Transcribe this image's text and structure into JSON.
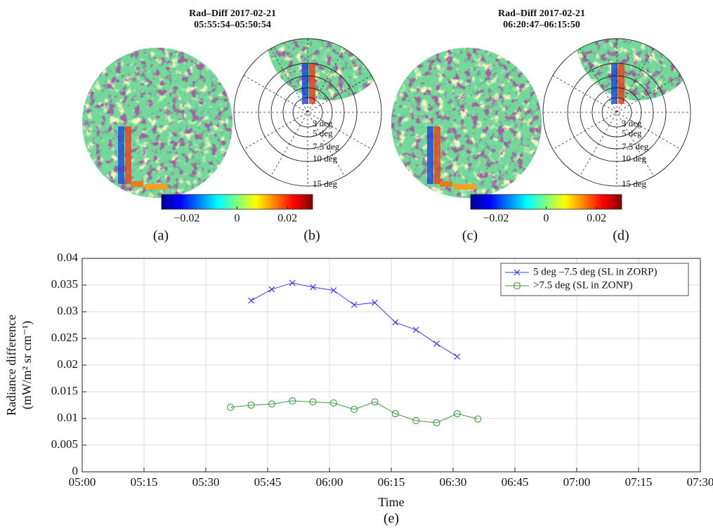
{
  "panels": [
    {
      "title": "Rad–Diff 2017-02-21",
      "time": "05:55:54–05:50:54",
      "labels": [
        "(a)",
        "(b)"
      ],
      "rings": [
        "3 deg",
        "5 deg",
        "7.5 deg",
        "10 deg",
        "15 deg"
      ],
      "colorbar": {
        "lim": [
          -0.03,
          0.03
        ],
        "ticks": [
          {
            "value": -0.02,
            "label": "−0.02"
          },
          0,
          0.02
        ]
      }
    },
    {
      "title": "Rad–Diff 2017-02-21",
      "time": "06:20:47–06:15:50",
      "labels": [
        "(c)",
        "(d)"
      ],
      "rings": [
        "3 deg",
        "5 deg",
        "7.5 deg",
        "10 deg",
        "15 deg"
      ],
      "colorbar": {
        "lim": [
          -0.03,
          0.03
        ],
        "ticks": [
          {
            "value": -0.02,
            "label": "−0.02"
          },
          0,
          0.02
        ]
      }
    }
  ],
  "chart_data": {
    "type": "line",
    "x_label": "Time",
    "y_label": [
      "Radiance difference",
      "(mW/m² sr cm⁻¹)"
    ],
    "label": "(e)",
    "x": [
      "05:36",
      "05:41",
      "05:46",
      "05:51",
      "05:56",
      "06:01",
      "06:06",
      "06:11",
      "06:16",
      "06:21",
      "06:26",
      "06:31",
      "06:36"
    ],
    "series": [
      {
        "name": "5 deg –7.5 deg (SL in ZORP)",
        "color": "#3c3cf0",
        "marker": "x",
        "values": [
          null,
          0.0321,
          0.0342,
          0.0354,
          0.0346,
          0.034,
          0.0313,
          0.0317,
          0.028,
          0.0266,
          0.024,
          0.0216,
          null
        ]
      },
      {
        "name": ">7.5 deg (SL in ZONP)",
        "color": "#3f9a3f",
        "marker": "o",
        "values": [
          0.0121,
          0.0125,
          0.0127,
          0.0133,
          0.0131,
          0.0129,
          0.0117,
          0.0131,
          0.0109,
          0.0096,
          0.0092,
          0.0109,
          0.0099
        ]
      }
    ],
    "xlim": [
      "05:00",
      "07:30"
    ],
    "xticks": [
      "05:00",
      "05:15",
      "05:30",
      "05:45",
      "06:00",
      "06:15",
      "06:30",
      "06:45",
      "07:00",
      "07:15",
      "07:30"
    ],
    "ylim": [
      0,
      0.04
    ],
    "yticks": [
      0,
      0.005,
      0.01,
      0.015,
      0.02,
      0.025,
      0.03,
      0.035,
      0.04
    ],
    "grid": true,
    "legend": "top-right"
  }
}
